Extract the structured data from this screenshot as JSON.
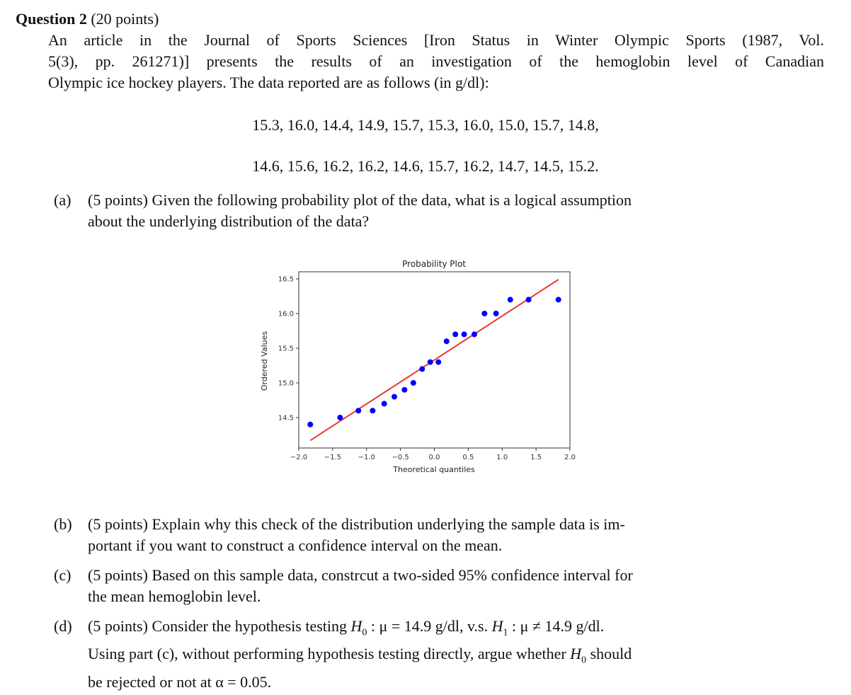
{
  "question": {
    "title_bold": "Question 2",
    "title_points": "(20 points)",
    "intro_lines": [
      "An article in the Journal of Sports Sciences [Iron Status in Winter Olympic Sports (1987, Vol.",
      "5(3), pp. 261271)] presents the results of an investigation of the hemoglobin level of Canadian",
      "Olympic ice hockey players. The data reported are as follows (in g/dl):"
    ],
    "data_line_1": "15.3, 16.0, 14.4, 14.9, 15.7, 15.3, 16.0, 15.0, 15.7, 14.8,",
    "data_line_2": "14.6, 15.6, 16.2, 16.2, 14.6, 15.7, 16.2, 14.7, 14.5, 15.2.",
    "parts": [
      {
        "label": "(a)",
        "lines": [
          "(5 points) Given the following probability plot of the data, what is a logical assumption",
          "about the underlying distribution of the data?"
        ]
      },
      {
        "label": "(b)",
        "lines": [
          "(5 points) Explain why this check of the distribution underlying the sample data is im-",
          "portant if you want to construct a confidence interval on the mean."
        ]
      },
      {
        "label": "(c)",
        "lines": [
          "(5 points) Based on this sample data, constrcut a two-sided 95% confidence interval for",
          "the mean hemoglobin level."
        ]
      },
      {
        "label": "(d)",
        "line1_pre": "(5 points) Consider the hypothesis testing ",
        "h0": "H",
        "h0_sub": "0",
        "h0_rel": " : μ = 14.9 g/dl, v.s. ",
        "h1": "H",
        "h1_sub": "1",
        "h1_rel": " : μ ≠ 14.9 g/dl.",
        "line2_pre": "Using part (c), without performing hypothesis testing directly, argue whether ",
        "line2_h": "H",
        "line2_sub": "0",
        "line2_post": " should",
        "line3": "be rejected or not at α = 0.05."
      }
    ]
  },
  "chart_data": {
    "type": "scatter",
    "title": "Probability Plot",
    "xlabel": "Theoretical quantiles",
    "ylabel": "Ordered Values",
    "xlim": [
      -2.0,
      2.0
    ],
    "ylim": [
      14.1,
      16.6
    ],
    "xticks": [
      "−2.0",
      "−1.5",
      "−1.0",
      "−0.5",
      "0.0",
      "0.5",
      "1.0",
      "1.5",
      "2.0"
    ],
    "yticks": [
      "14.5",
      "15.0",
      "15.5",
      "16.0",
      "16.5"
    ],
    "grid": false,
    "series": [
      {
        "name": "Ordered values",
        "color": "#0000ff",
        "x": [
          -1.83,
          -1.39,
          -1.12,
          -0.91,
          -0.74,
          -0.59,
          -0.44,
          -0.31,
          -0.18,
          -0.06,
          0.06,
          0.18,
          0.31,
          0.44,
          0.59,
          0.74,
          0.91,
          1.12,
          1.39,
          1.83
        ],
        "y": [
          14.4,
          14.5,
          14.6,
          14.6,
          14.7,
          14.8,
          14.9,
          15.0,
          15.2,
          15.3,
          15.3,
          15.6,
          15.7,
          15.7,
          15.7,
          16.0,
          16.0,
          16.2,
          16.2,
          16.2
        ]
      },
      {
        "name": "Fit line",
        "color": "#e8392e",
        "x": [
          -1.83,
          1.83
        ],
        "y": [
          14.17,
          16.49
        ]
      }
    ]
  }
}
